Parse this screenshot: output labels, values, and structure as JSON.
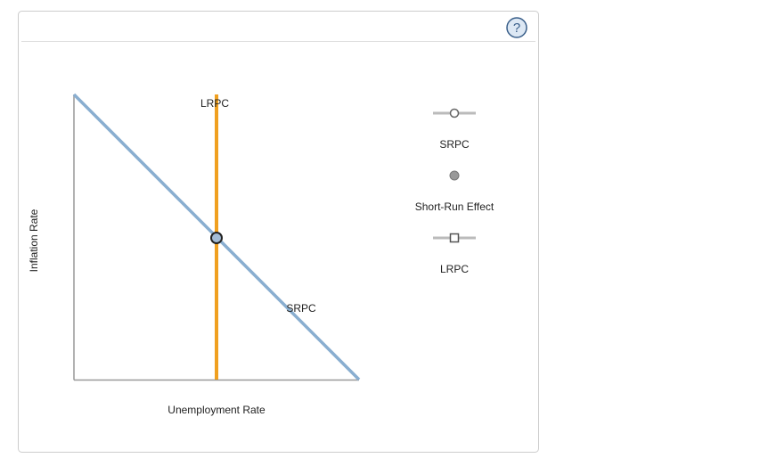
{
  "help": "?",
  "graph": {
    "y_axis_label": "Inflation Rate",
    "x_axis_label": "Unemployment Rate",
    "curves": [
      {
        "label": "LRPC"
      },
      {
        "label": "SRPC"
      }
    ]
  },
  "legend": [
    {
      "label": "SRPC"
    },
    {
      "label": "Short-Run Effect"
    },
    {
      "label": "LRPC"
    }
  ]
}
